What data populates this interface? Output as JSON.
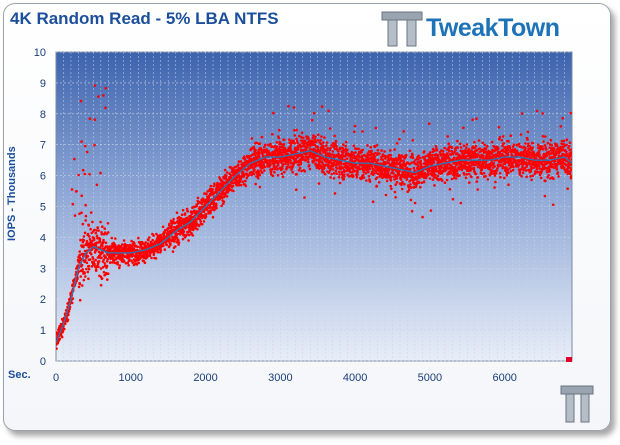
{
  "chart_data": {
    "type": "scatter",
    "title": "4K Random Read - 5% LBA NTFS",
    "ylabel": "IOPS - Thousands",
    "xlabel": "Sec.",
    "xlim": [
      0,
      6900
    ],
    "ylim": [
      0,
      10
    ],
    "x_ticks": [
      0,
      1000,
      2000,
      3000,
      4000,
      5000,
      6000
    ],
    "y_ticks": [
      0,
      1,
      2,
      3,
      4,
      5,
      6,
      7,
      8,
      9,
      10
    ],
    "grid": true,
    "series": [
      {
        "color": "#ff0000",
        "style": "scatter",
        "approx_x": [
          0,
          100,
          200,
          300,
          400,
          500,
          600,
          700,
          800,
          900,
          1000,
          1200,
          1400,
          1600,
          1800,
          2000,
          2200,
          2400,
          2600,
          2800,
          3000,
          3200,
          3400,
          3600,
          3800,
          4000,
          4200,
          4400,
          4600,
          4800,
          5000,
          5200,
          5400,
          5600,
          5800,
          6000,
          6200,
          6400,
          6600,
          6800,
          6900
        ],
        "approx_y": [
          0.6,
          1.2,
          2.0,
          3.0,
          3.5,
          3.7,
          3.6,
          3.5,
          3.5,
          3.5,
          3.5,
          3.6,
          3.8,
          4.2,
          4.5,
          5.0,
          5.5,
          6.0,
          6.4,
          6.6,
          6.6,
          6.7,
          6.8,
          6.6,
          6.5,
          6.4,
          6.4,
          6.3,
          6.2,
          6.1,
          6.3,
          6.4,
          6.5,
          6.5,
          6.5,
          6.6,
          6.6,
          6.5,
          6.5,
          6.6,
          6.4
        ]
      },
      {
        "color": "#2e74b5",
        "style": "line",
        "approx_x": [
          0,
          100,
          200,
          300,
          400,
          500,
          600,
          700,
          800,
          900,
          1000,
          1200,
          1400,
          1600,
          1800,
          2000,
          2200,
          2400,
          2600,
          2800,
          3000,
          3200,
          3400,
          3600,
          3800,
          4000,
          4200,
          4400,
          4600,
          4800,
          5000,
          5200,
          5400,
          5600,
          5800,
          6000,
          6200,
          6400,
          6600,
          6800,
          6900
        ],
        "approx_y": [
          0.6,
          1.2,
          2.0,
          3.0,
          3.5,
          3.7,
          3.6,
          3.5,
          3.5,
          3.5,
          3.5,
          3.6,
          3.8,
          4.2,
          4.5,
          5.0,
          5.5,
          6.0,
          6.4,
          6.6,
          6.6,
          6.7,
          6.8,
          6.6,
          6.5,
          6.4,
          6.4,
          6.3,
          6.2,
          6.1,
          6.3,
          6.4,
          6.5,
          6.5,
          6.5,
          6.6,
          6.6,
          6.5,
          6.5,
          6.6,
          6.4
        ]
      }
    ]
  },
  "brand": {
    "name": "TweakTown",
    "color": "#1e73b8",
    "logo_icon": "tweaktown-tt-icon"
  }
}
